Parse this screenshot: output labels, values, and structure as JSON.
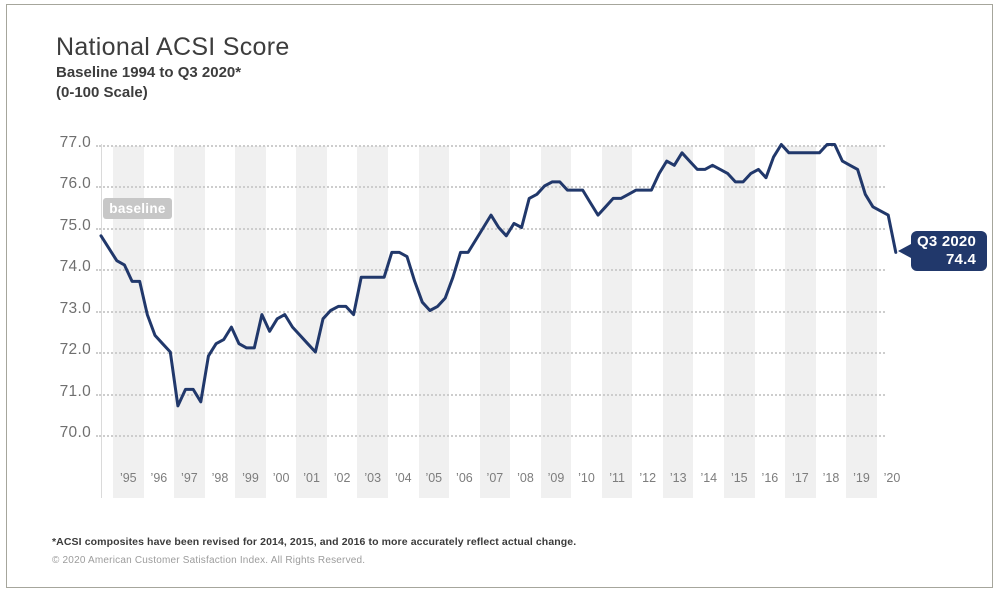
{
  "header": {
    "title": "National ACSI Score",
    "subtitle_line1": "Baseline 1994 to Q3 2020*",
    "subtitle_line2": "(0-100 Scale)"
  },
  "badges": {
    "baseline_label": "baseline",
    "callout_line1": "Q3 2020",
    "callout_value": "74.4"
  },
  "footnotes": {
    "revision_note": "*ACSI composites have been revised for 2014, 2015, and 2016 to more accurately reflect actual change.",
    "copyright": "© 2020 American Customer Satisfaction Index. All Rights Reserved."
  },
  "colors": {
    "line": "#21386b",
    "callout_bg": "#21386b",
    "baseline_badge_bg": "#c7c7c7",
    "year_band": "#f0f0f0",
    "grid_dot": "#cdcdcd",
    "axis_text": "#6f6f6f",
    "title_text": "#3d3d3d"
  },
  "chart_data": {
    "type": "line",
    "title": "National ACSI Score",
    "subtitle": "Baseline 1994 to Q3 2020* (0-100 Scale)",
    "ylabel": "",
    "xlabel": "",
    "ylim": [
      70.0,
      77.0
    ],
    "ytick_labels": [
      "77.0",
      "76.0",
      "75.0",
      "74.0",
      "73.0",
      "72.0",
      "71.0",
      "70.0"
    ],
    "x_year_labels": [
      "’95",
      "’96",
      "’97",
      "’98",
      "’99",
      "’00",
      "’01",
      "’02",
      "’03",
      "’04",
      "’05",
      "’06",
      "’07",
      "’08",
      "’09",
      "’10",
      "’11",
      "’12",
      "’13",
      "’14",
      "’15",
      "’16",
      "’17",
      "’18",
      "’19",
      "’20"
    ],
    "grid": "horizontal dotted lines each 1.0; alternating gray vertical bands on odd years",
    "legend": "none",
    "series": [
      {
        "name": "National ACSI Score",
        "start": "1994-Q4 (baseline)",
        "frequency": "quarterly",
        "values": [
          74.8,
          74.2,
          74.1,
          73.7,
          73.7,
          72.9,
          72.4,
          72.2,
          72.0,
          70.7,
          71.1,
          71.1,
          70.8,
          71.9,
          72.2,
          72.3,
          72.6,
          72.2,
          72.1,
          72.1,
          72.9,
          72.5,
          72.8,
          72.9,
          72.6,
          72.4,
          72.2,
          72.0,
          72.8,
          73.0,
          73.1,
          73.1,
          72.9,
          73.8,
          73.8,
          73.8,
          73.8,
          74.4,
          74.4,
          74.3,
          73.7,
          73.2,
          73.0,
          73.1,
          73.3,
          73.8,
          74.4,
          74.4,
          74.7,
          75.0,
          75.3,
          75.0,
          74.8,
          75.1,
          75.0,
          75.7,
          75.8,
          76.0,
          76.1,
          76.1,
          75.9,
          75.9,
          75.9,
          75.6,
          75.3,
          75.5,
          75.7,
          75.7,
          75.8,
          75.9,
          75.9,
          75.9,
          76.3,
          76.6,
          76.5,
          76.8,
          76.6,
          76.4,
          76.4,
          76.5,
          76.4,
          76.3,
          76.1,
          76.1,
          76.3,
          76.4,
          76.2,
          76.7,
          77.0,
          76.8,
          76.8,
          76.8,
          76.8,
          76.8,
          77.0,
          77.0,
          76.6,
          76.5,
          76.4,
          75.8,
          75.5,
          75.4,
          75.3,
          74.4
        ]
      }
    ],
    "annotations": [
      {
        "label": "baseline",
        "value": 74.8,
        "position": "1994-Q4"
      },
      {
        "label": "Q3 2020",
        "value": 74.4,
        "position": "2020-Q3"
      }
    ]
  }
}
